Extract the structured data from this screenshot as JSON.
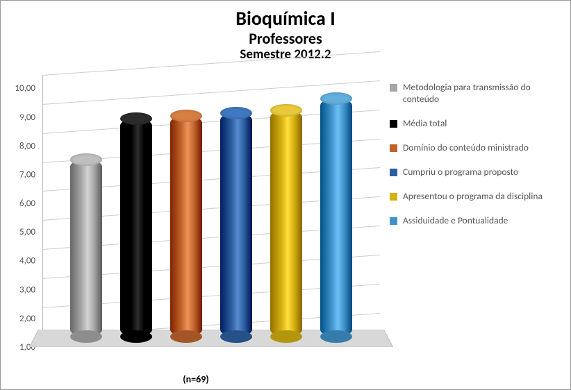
{
  "chart": {
    "type": "bar-3d-cylinder",
    "title_line1": "Bioquímica I",
    "title_line2": "Professores",
    "title_line3": "Semestre 2012.2",
    "title1_fontsize": 28,
    "title2_fontsize": 22,
    "title3_fontsize": 19,
    "xlabel": "(n=69)",
    "ylim": [
      1.0,
      10.0
    ],
    "ytick_step": 1.0,
    "ytick_labels": [
      "1,00",
      "2,00",
      "3,00",
      "4,00",
      "5,00",
      "6,00",
      "7,00",
      "8,00",
      "9,00",
      "10,00"
    ],
    "grid_color": "#cccccc",
    "floor_color": "#d8d8d8",
    "background_color": "#ffffff",
    "border_color": "#999999",
    "label_color": "#555555",
    "series": [
      {
        "label": "Metodologia para transmissão do conteúdo",
        "value": 7.1,
        "color": "#a6a6a6",
        "top_color": "#bfbfbf"
      },
      {
        "label": "Média total",
        "value": 8.5,
        "color": "#000000",
        "top_color": "#2b2b2b"
      },
      {
        "label": "Domínio do conteúdo ministrado",
        "value": 8.6,
        "color": "#c0642b",
        "top_color": "#d77f42"
      },
      {
        "label": "Cumpriu o programa proposto",
        "value": 8.7,
        "color": "#2b5ea0",
        "top_color": "#3f77c0"
      },
      {
        "label": "Apresentou o programa da disciplina",
        "value": 8.8,
        "color": "#d4b010",
        "top_color": "#e8c93a"
      },
      {
        "label": "Assiduidade e Pontualidade",
        "value": 9.2,
        "color": "#3f92c9",
        "top_color": "#62aedc"
      }
    ],
    "legend_order": [
      0,
      1,
      2,
      3,
      4,
      5
    ]
  }
}
